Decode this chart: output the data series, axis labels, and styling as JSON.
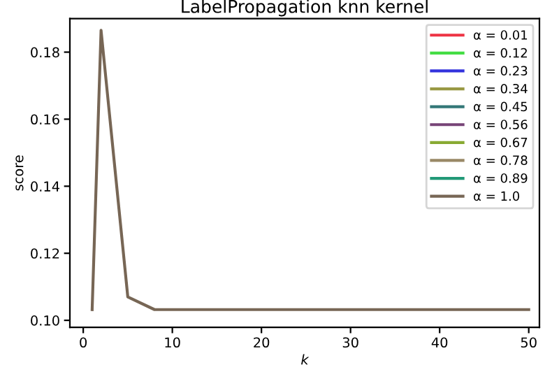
{
  "chart_data": {
    "type": "line",
    "title": "LabelPropagation knn kernel",
    "xlabel": "k",
    "ylabel": "score",
    "x": [
      1,
      2,
      5,
      8,
      50
    ],
    "xlim": [
      -1.5,
      51.2
    ],
    "xticks": [
      0,
      10,
      20,
      30,
      40,
      50
    ],
    "ylim": [
      0.0979,
      0.19
    ],
    "yticks": [
      {
        "value": 0.1,
        "label": "0.10"
      },
      0.12,
      0.14,
      0.16,
      0.18
    ],
    "legend": "top right",
    "grid": false,
    "series": [
      {
        "name": "α = 0.01",
        "color": "#ee3344",
        "values": [
          null,
          null,
          null,
          null,
          null
        ]
      },
      {
        "name": "α = 0.12",
        "color": "#44dd44",
        "values": [
          null,
          null,
          null,
          null,
          null
        ]
      },
      {
        "name": "α = 0.23",
        "color": "#3333dd",
        "values": [
          null,
          null,
          null,
          null,
          null
        ]
      },
      {
        "name": "α = 0.34",
        "color": "#999944",
        "values": [
          null,
          null,
          null,
          null,
          null
        ]
      },
      {
        "name": "α = 0.45",
        "color": "#337777",
        "values": [
          null,
          null,
          null,
          null,
          null
        ]
      },
      {
        "name": "α = 0.56",
        "color": "#774477",
        "values": [
          null,
          null,
          null,
          null,
          null
        ]
      },
      {
        "name": "α = 0.67",
        "color": "#88aa33",
        "values": [
          null,
          null,
          null,
          null,
          null
        ]
      },
      {
        "name": "α = 0.78",
        "color": "#998866",
        "values": [
          null,
          null,
          null,
          null,
          null
        ]
      },
      {
        "name": "α = 0.89",
        "color": "#229977",
        "values": [
          null,
          null,
          null,
          null,
          null
        ]
      },
      {
        "name": "α = 1.0",
        "color": "#776655",
        "values": [
          0.1032,
          0.1865,
          0.107,
          0.1032,
          0.1032
        ]
      }
    ]
  }
}
